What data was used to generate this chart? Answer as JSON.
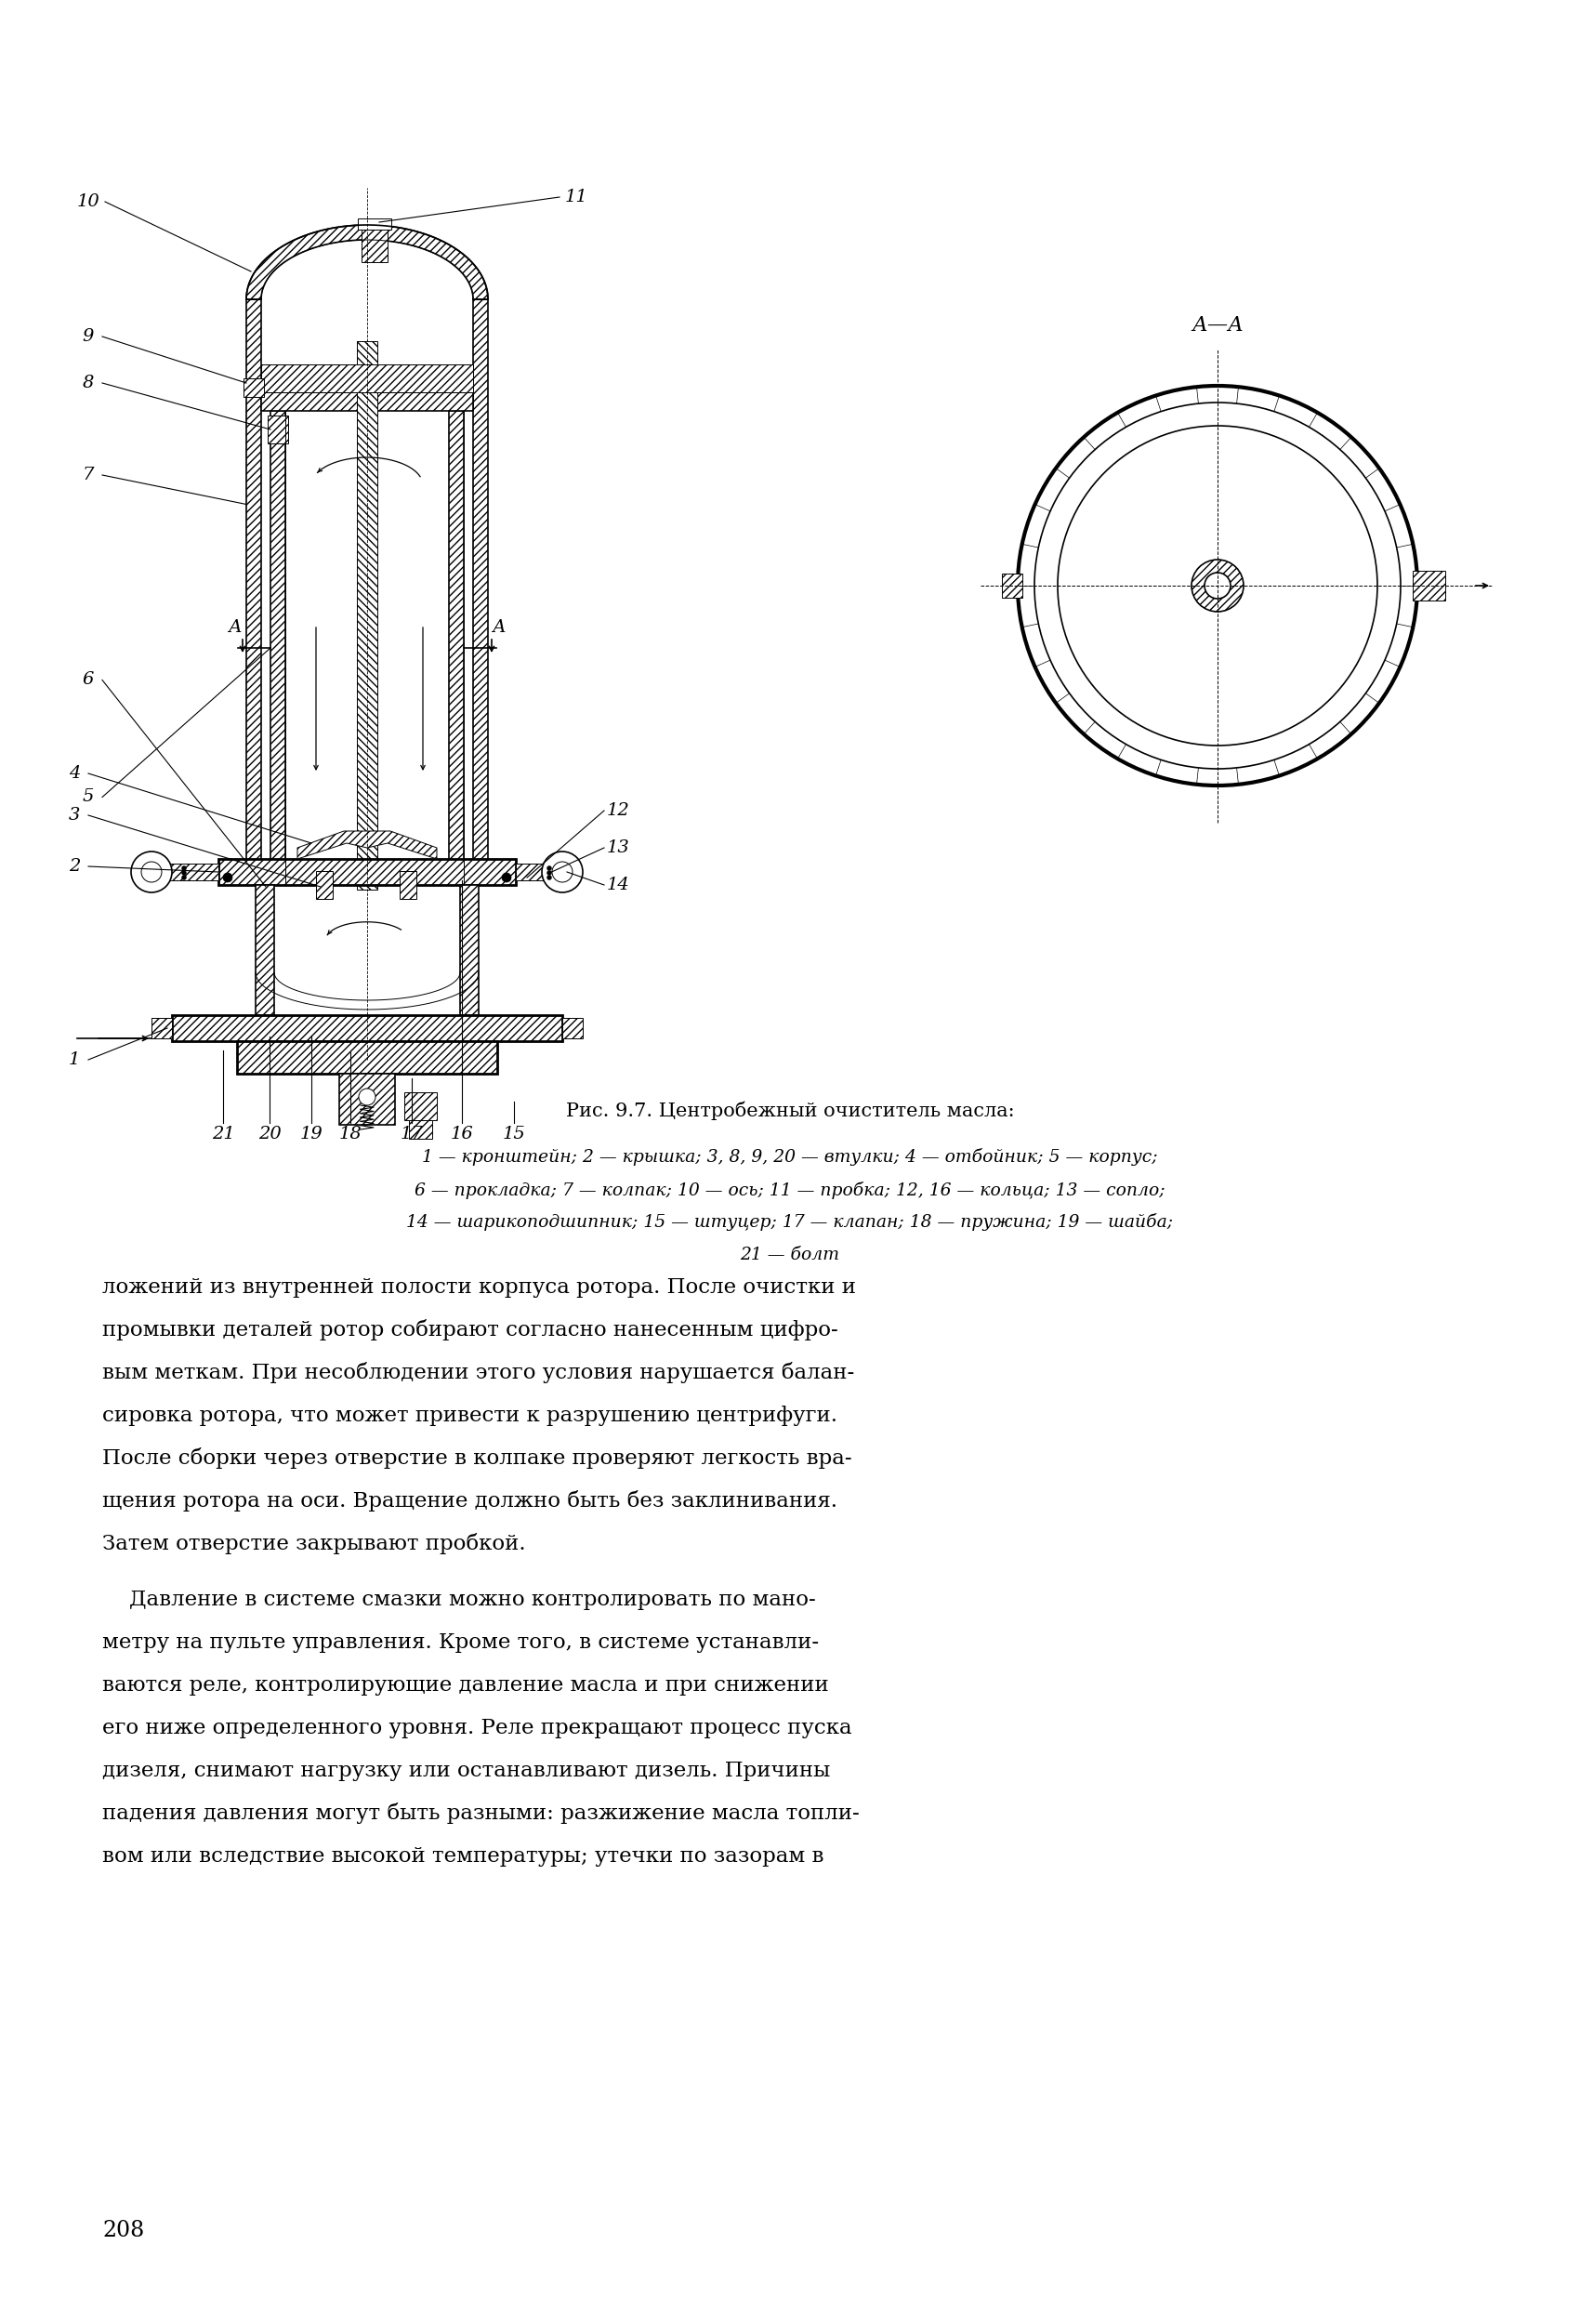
{
  "page_width": 17.0,
  "page_height": 25.0,
  "bg_color": "#ffffff",
  "fig_caption": "Рис. 9.7. Центробежный очиститель масла:",
  "legend_line1": "1 — кронштейн; 2 — крышка; 3, 8, 9, 20 — втулки; 4 — отбойник; 5 — корпус;",
  "legend_line2": "6 — прокладка; 7 — колпак; 10 — ось; 11 — пробка; 12, 16 — кольца; 13 — сопло;",
  "legend_line3": "14 — шарикоподшипник; 15 — штуцер; 17 — клапан; 18 — пружина; 19 — шайба;",
  "legend_line4": "21 — болт",
  "body_para1_lines": [
    "ложений из внутренней полости корпуса ротора. После очистки и",
    "промывки деталей ротор собирают согласно нанесенным цифро-",
    "вым меткам. При несоблюдении этого условия нарушается балан-",
    "сировка ротора, что может привести к разрушению центрифуги.",
    "После сборки через отверстие в колпаке проверяют легкость вра-",
    "щения ротора на оси. Вращение должно быть без заклинивания.",
    "Затем отверстие закрывают пробкой."
  ],
  "body_para2_lines": [
    "    Давление в системе смазки можно контролировать по мано-",
    "метру на пульте управления. Кроме того, в системе устанавли-",
    "ваются реле, контролирующие давление масла и при снижении",
    "его ниже определенного уровня. Реле прекращают процесс пуска",
    "дизеля, снимают нагрузку или останавливают дизель. Причины",
    "падения давления могут быть разными: разжижение масла топли-",
    "вом или вследствие высокой температуры; утечки по зазорам в"
  ],
  "page_number": "208"
}
